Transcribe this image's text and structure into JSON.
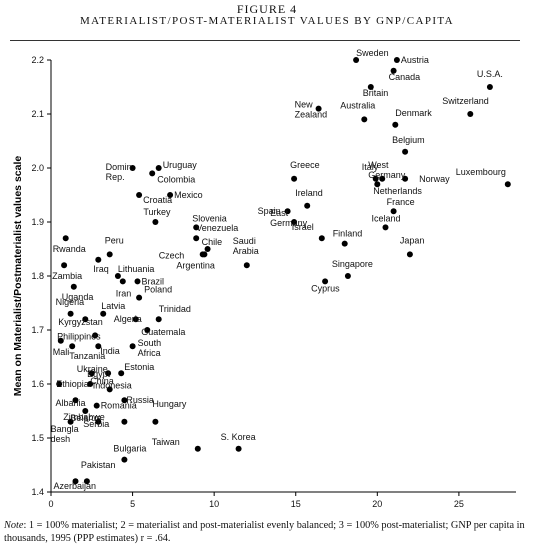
{
  "figure_label": "FIGURE 4",
  "figure_title": "MATERIALIST/POST-MATERIALIST VALUES BY GNP/CAPITA",
  "note_lead": "Note",
  "note_text": ": 1 = 100% materialist; 2 = materialist and post-materialist evenly balanced; 3 = 100% post-materialist; GNP per capita in thousands, 1995 (PPP estimates) r = .64.",
  "chart_data": {
    "type": "scatter",
    "title": "MATERIALIST/POST-MATERIALIST VALUES BY GNP/CAPITA",
    "xlabel": "",
    "ylabel": "Mean on Materialist/Postmaterialist values scale",
    "xlim": [
      0,
      28.5
    ],
    "ylim": [
      1.4,
      2.2
    ],
    "xticks": [
      0,
      5,
      10,
      15,
      20,
      25
    ],
    "yticks": [
      1.4,
      1.5,
      1.6,
      1.7,
      1.8,
      1.9,
      2.0,
      2.1,
      2.2
    ],
    "grid": false,
    "legend": "none",
    "points": [
      {
        "label": "Sweden",
        "x": 18.7,
        "y": 2.2
      },
      {
        "label": "Austria",
        "x": 21.2,
        "y": 2.2
      },
      {
        "label": "Canada",
        "x": 21.0,
        "y": 2.18
      },
      {
        "label": "Britain",
        "x": 19.6,
        "y": 2.15
      },
      {
        "label": "U.S.A.",
        "x": 26.9,
        "y": 2.15
      },
      {
        "label": "New Zealand",
        "x": 16.4,
        "y": 2.11
      },
      {
        "label": "Australia",
        "x": 19.2,
        "y": 2.09
      },
      {
        "label": "Denmark",
        "x": 21.1,
        "y": 2.08
      },
      {
        "label": "Switzerland",
        "x": 25.7,
        "y": 2.1
      },
      {
        "label": "Belgium",
        "x": 21.7,
        "y": 2.03
      },
      {
        "label": "West Germany",
        "x": 20.3,
        "y": 1.98
      },
      {
        "label": "Italy",
        "x": 19.9,
        "y": 1.98
      },
      {
        "label": "Norway",
        "x": 21.7,
        "y": 1.98
      },
      {
        "label": "Netherlands",
        "x": 20.0,
        "y": 1.97
      },
      {
        "label": "Luxembourg",
        "x": 28.0,
        "y": 1.97
      },
      {
        "label": "Greece",
        "x": 14.9,
        "y": 1.98
      },
      {
        "label": "Ireland",
        "x": 15.7,
        "y": 1.93
      },
      {
        "label": "Spain",
        "x": 14.5,
        "y": 1.92
      },
      {
        "label": "France",
        "x": 21.0,
        "y": 1.92
      },
      {
        "label": "East Germany",
        "x": 14.9,
        "y": 1.9
      },
      {
        "label": "Iceland",
        "x": 20.5,
        "y": 1.89
      },
      {
        "label": "Israel",
        "x": 16.6,
        "y": 1.87
      },
      {
        "label": "Finland",
        "x": 18.0,
        "y": 1.86
      },
      {
        "label": "Japan",
        "x": 22.0,
        "y": 1.84
      },
      {
        "label": "Saudi Arabia",
        "x": 12.0,
        "y": 1.82
      },
      {
        "label": "Singapore",
        "x": 18.2,
        "y": 1.8
      },
      {
        "label": "Cyprus",
        "x": 16.8,
        "y": 1.79
      },
      {
        "label": "Uruguay",
        "x": 6.6,
        "y": 2.0
      },
      {
        "label": "Dominican Rep.",
        "x": 5.0,
        "y": 2.0
      },
      {
        "label": "Colombia",
        "x": 6.2,
        "y": 1.99
      },
      {
        "label": "Mexico",
        "x": 7.3,
        "y": 1.95
      },
      {
        "label": "Croatia",
        "x": 5.4,
        "y": 1.95
      },
      {
        "label": "Turkey",
        "x": 6.4,
        "y": 1.9
      },
      {
        "label": "Slovenia",
        "x": 8.9,
        "y": 1.89
      },
      {
        "label": "Venezuela",
        "x": 8.9,
        "y": 1.87
      },
      {
        "label": "Chile",
        "x": 9.6,
        "y": 1.85
      },
      {
        "label": "Czech",
        "x": 9.3,
        "y": 1.84
      },
      {
        "label": "Argentina",
        "x": 9.4,
        "y": 1.84
      },
      {
        "label": "Rwanda",
        "x": 0.9,
        "y": 1.87
      },
      {
        "label": "Peru",
        "x": 3.6,
        "y": 1.84
      },
      {
        "label": "Iraq",
        "x": 2.9,
        "y": 1.83
      },
      {
        "label": "Zambia",
        "x": 0.8,
        "y": 1.82
      },
      {
        "label": "Lithuania",
        "x": 4.1,
        "y": 1.8
      },
      {
        "label": "Brazil",
        "x": 5.3,
        "y": 1.79
      },
      {
        "label": "Uganda",
        "x": 1.4,
        "y": 1.78
      },
      {
        "label": "Iran",
        "x": 4.4,
        "y": 1.79
      },
      {
        "label": "Poland",
        "x": 5.4,
        "y": 1.76
      },
      {
        "label": "Nigeria",
        "x": 1.2,
        "y": 1.73
      },
      {
        "label": "Latvia",
        "x": 3.2,
        "y": 1.73
      },
      {
        "label": "Algeria",
        "x": 5.2,
        "y": 1.72
      },
      {
        "label": "Trinidad",
        "x": 6.6,
        "y": 1.72
      },
      {
        "label": "Kyrgyzstan",
        "x": 2.1,
        "y": 1.72
      },
      {
        "label": "Guatemala",
        "x": 5.9,
        "y": 1.7
      },
      {
        "label": "Philippines",
        "x": 2.7,
        "y": 1.69
      },
      {
        "label": "Mali",
        "x": 0.6,
        "y": 1.68
      },
      {
        "label": "Tanzania",
        "x": 1.3,
        "y": 1.67
      },
      {
        "label": "India",
        "x": 2.9,
        "y": 1.67
      },
      {
        "label": "South Africa",
        "x": 5.0,
        "y": 1.67
      },
      {
        "label": "Estonia",
        "x": 4.3,
        "y": 1.62
      },
      {
        "label": "Ukraine",
        "x": 2.5,
        "y": 1.62
      },
      {
        "label": "Egypt",
        "x": 3.5,
        "y": 1.62
      },
      {
        "label": "China",
        "x": 2.4,
        "y": 1.6
      },
      {
        "label": "Ethiopia",
        "x": 0.5,
        "y": 1.6
      },
      {
        "label": "Indonesia",
        "x": 3.6,
        "y": 1.59
      },
      {
        "label": "Russia",
        "x": 4.5,
        "y": 1.57
      },
      {
        "label": "Albania",
        "x": 1.5,
        "y": 1.57
      },
      {
        "label": "Zimbabwe",
        "x": 2.1,
        "y": 1.55
      },
      {
        "label": "Romania",
        "x": 2.8,
        "y": 1.56
      },
      {
        "label": "Hungary",
        "x": 6.4,
        "y": 1.53
      },
      {
        "label": "Belarus",
        "x": 4.5,
        "y": 1.53
      },
      {
        "label": "Serbia",
        "x": 2.9,
        "y": 1.53
      },
      {
        "label": "Bangladesh",
        "x": 1.2,
        "y": 1.53
      },
      {
        "label": "Taiwan",
        "x": 9.0,
        "y": 1.48
      },
      {
        "label": "S. Korea",
        "x": 11.5,
        "y": 1.48
      },
      {
        "label": "Bulgaria",
        "x": 4.5,
        "y": 1.46
      },
      {
        "label": "Pakistan",
        "x": 2.2,
        "y": 1.42
      },
      {
        "label": "Azerbaijan",
        "x": 1.5,
        "y": 1.42
      }
    ]
  }
}
